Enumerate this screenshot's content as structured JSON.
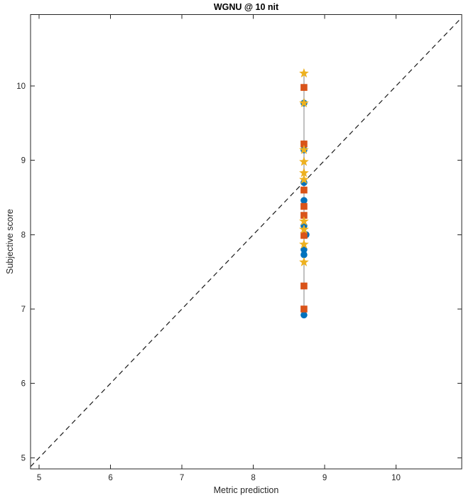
{
  "chart_data": {
    "type": "scatter",
    "title": "WGNU @ 10 nit",
    "xlabel": "Metric prediction",
    "ylabel": "Subjective score",
    "xlim": [
      4.88,
      10.92
    ],
    "ylim": [
      4.85,
      10.96
    ],
    "xticks": [
      5,
      6,
      7,
      8,
      9,
      10
    ],
    "yticks": [
      5,
      6,
      7,
      8,
      9,
      10
    ],
    "grid": false,
    "legend": null,
    "axis_color": "#262626",
    "background_color": "#ffffff",
    "reference_line": {
      "type": "identity",
      "style": "dashed",
      "color": "#1a1a1a",
      "x1": 4.88,
      "y1": 4.88,
      "x2": 10.92,
      "y2": 10.92
    },
    "connector_line": {
      "color": "#bfbfbf",
      "width": 2,
      "x": 8.71,
      "y1": 6.92,
      "y2": 10.17
    },
    "series": [
      {
        "name": "blue-circles",
        "marker": "circle",
        "color": "#0072BD",
        "points": [
          [
            8.71,
            9.77
          ],
          [
            8.71,
            9.14
          ],
          [
            8.71,
            8.7
          ],
          [
            8.71,
            8.46
          ],
          [
            8.71,
            8.12
          ],
          [
            8.74,
            8.0
          ],
          [
            8.71,
            7.8
          ],
          [
            8.71,
            7.73
          ],
          [
            8.71,
            6.92
          ]
        ]
      },
      {
        "name": "orange-squares",
        "marker": "square",
        "color": "#D95319",
        "points": [
          [
            8.71,
            9.98
          ],
          [
            8.71,
            9.22
          ],
          [
            8.71,
            8.6
          ],
          [
            8.71,
            8.38
          ],
          [
            8.71,
            8.26
          ],
          [
            8.71,
            7.99
          ],
          [
            8.71,
            7.31
          ],
          [
            8.71,
            7.0
          ]
        ]
      },
      {
        "name": "yellow-stars",
        "marker": "star",
        "color": "#EDB120",
        "points": [
          [
            8.71,
            10.17
          ],
          [
            8.71,
            9.77
          ],
          [
            8.71,
            9.14
          ],
          [
            8.71,
            8.98
          ],
          [
            8.71,
            8.83
          ],
          [
            8.71,
            8.74
          ],
          [
            8.71,
            8.18
          ],
          [
            8.71,
            8.07
          ],
          [
            8.71,
            7.87
          ],
          [
            8.71,
            7.63
          ]
        ]
      }
    ]
  }
}
